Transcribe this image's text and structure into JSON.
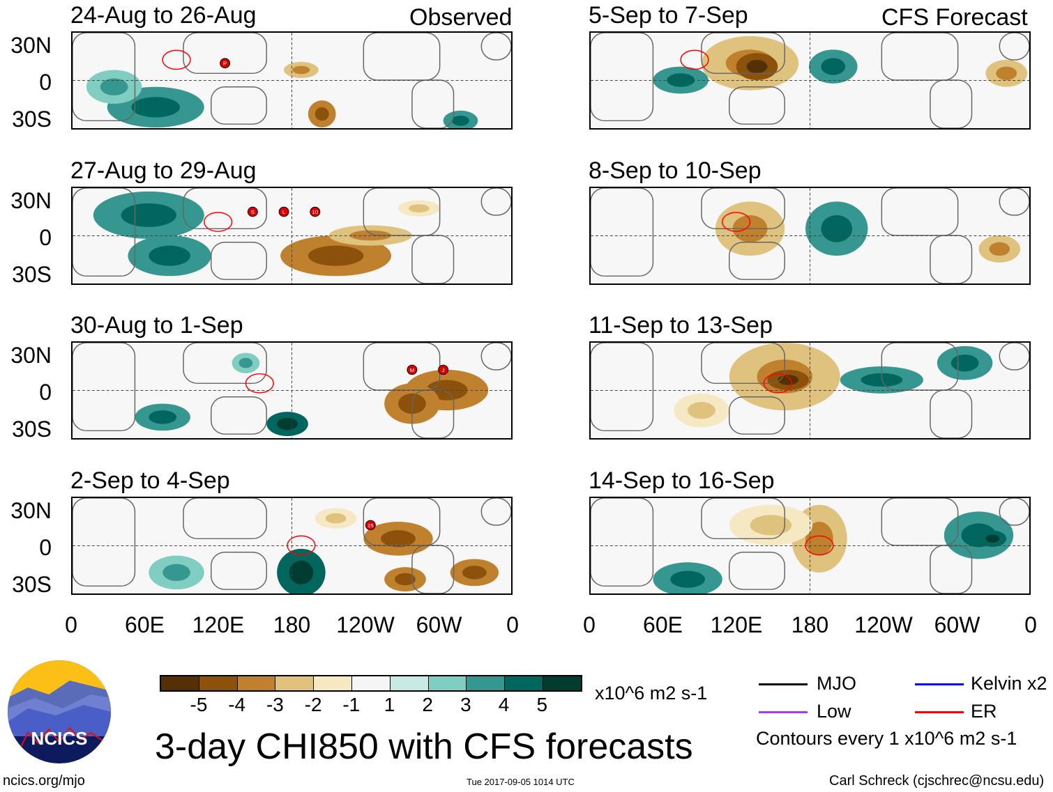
{
  "panels": {
    "left_header": "Observed",
    "right_header": "CFS Forecast",
    "left": [
      {
        "title": "24-Aug to 26-Aug",
        "storms": [
          "P"
        ]
      },
      {
        "title": "27-Aug to 29-Aug",
        "storms": [
          "S",
          "L",
          "10"
        ]
      },
      {
        "title": "30-Aug to 1-Sep",
        "storms": [
          "M",
          "J"
        ]
      },
      {
        "title": "2-Sep to 4-Sep",
        "storms": [
          "15"
        ]
      }
    ],
    "right": [
      {
        "title": "5-Sep to 7-Sep"
      },
      {
        "title": "8-Sep to 10-Sep"
      },
      {
        "title": "11-Sep to 13-Sep"
      },
      {
        "title": "14-Sep to 16-Sep"
      }
    ]
  },
  "lat_labels": [
    "30N",
    "0",
    "30S"
  ],
  "lon_labels": [
    "0",
    "60E",
    "120E",
    "180",
    "120W",
    "60W",
    "0"
  ],
  "colorbar": {
    "colors": [
      "#543005",
      "#8c510a",
      "#bf812d",
      "#dfc27d",
      "#f6e8c3",
      "#f5f5f5",
      "#c7eae5",
      "#80cdc1",
      "#35978f",
      "#01665e",
      "#003c30"
    ],
    "labels": [
      "-5",
      "-4",
      "-3",
      "-2",
      "-1",
      "1",
      "2",
      "3",
      "4",
      "5"
    ],
    "units": "x10^6 m2 s-1"
  },
  "legend": {
    "items": [
      {
        "label": "MJO",
        "color": "#000000"
      },
      {
        "label": "Kelvin x2",
        "color": "#0000ff"
      },
      {
        "label": "Low",
        "color": "#a040e0"
      },
      {
        "label": "ER",
        "color": "#ff0000"
      }
    ],
    "contours": "Contours every 1 x10^6 m2 s-1"
  },
  "logo": {
    "text": "NCICS"
  },
  "title": "3-day CHI850 with CFS forecasts",
  "footer": {
    "url": "ncics.org/mjo",
    "timestamp": "Tue 2017-09-05 1014 UTC",
    "credit": "Carl Schreck (cjschrec@ncsu.edu)"
  }
}
